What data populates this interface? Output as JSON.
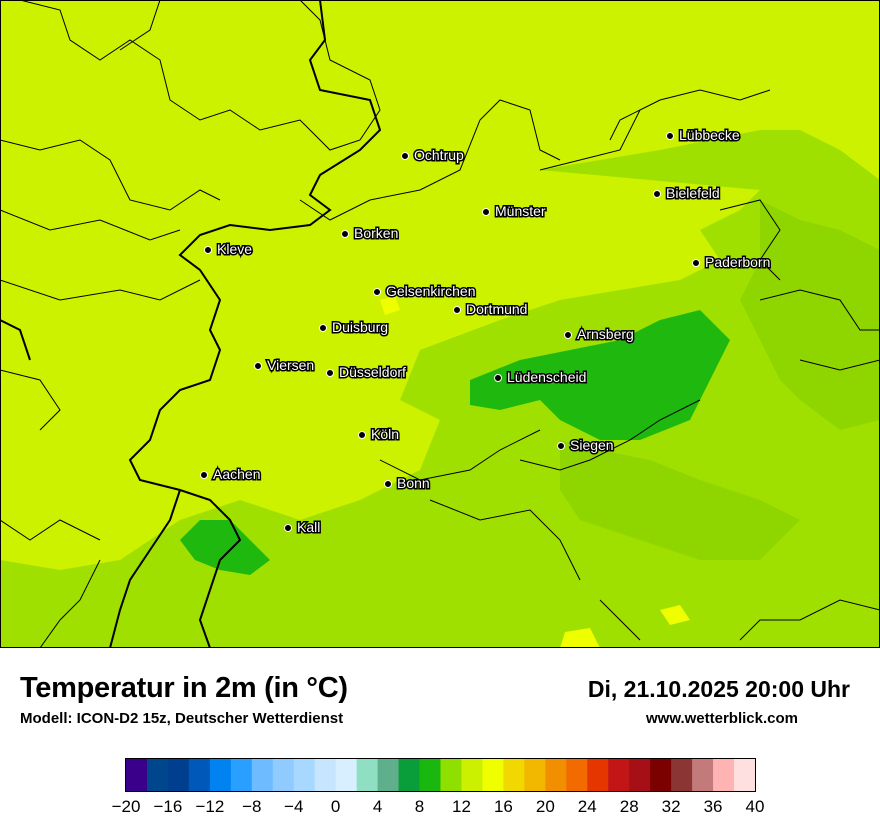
{
  "map": {
    "background_color": "#ccf200",
    "cities": [
      {
        "name": "Lübbecke"
      },
      {
        "name": "Ochtrup"
      },
      {
        "name": "Bielefeld"
      },
      {
        "name": "Münster"
      },
      {
        "name": "Borken"
      },
      {
        "name": "Kleve"
      },
      {
        "name": "Paderborn"
      },
      {
        "name": "Gelsenkirchen"
      },
      {
        "name": "Dortmund"
      },
      {
        "name": "Duisburg"
      },
      {
        "name": "Arnsberg"
      },
      {
        "name": "Viersen"
      },
      {
        "name": "Düsseldorf"
      },
      {
        "name": "Lüdenscheid"
      },
      {
        "name": "Köln"
      },
      {
        "name": "Siegen"
      },
      {
        "name": "Aachen"
      },
      {
        "name": "Bonn"
      },
      {
        "name": "Kall"
      }
    ]
  },
  "footer": {
    "title": "Temperatur in 2m (in °C)",
    "model": "Modell: ICON-D2 15z, Deutscher Wetterdienst",
    "datetime": "Di, 21.10.2025 20:00 Uhr",
    "website": "www.wetterblick.com"
  },
  "legend": {
    "ticks": [
      "−20",
      "−16",
      "−12",
      "−8",
      "−4",
      "0",
      "4",
      "8",
      "12",
      "16",
      "20",
      "24",
      "28",
      "32",
      "36",
      "40"
    ],
    "colors": [
      "#3b0089",
      "#00468c",
      "#003f8f",
      "#0059b8",
      "#0083f0",
      "#29a0ff",
      "#6ebcff",
      "#8fcbff",
      "#a8d8ff",
      "#c7e5ff",
      "#d8efff",
      "#8fdfc3",
      "#5fae8c",
      "#0a9e3a",
      "#1ab80f",
      "#8fe000",
      "#cbf000",
      "#f0ff00",
      "#f1d800",
      "#f2b800",
      "#f28f00",
      "#f26a00",
      "#e53600",
      "#c21515",
      "#a50f15",
      "#7b0000",
      "#8b3535",
      "#c27a7a",
      "#ffb3b3",
      "#ffe0e0"
    ]
  }
}
